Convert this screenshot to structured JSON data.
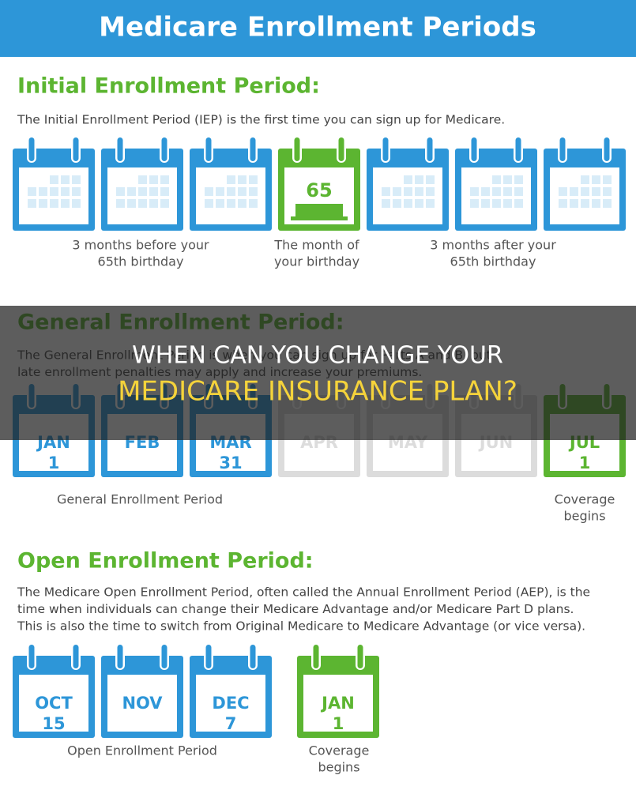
{
  "header": {
    "title": "Medicare Enrollment Periods"
  },
  "sections": [
    {
      "heading": "Initial Enrollment Period:",
      "description": [
        "The Initial Enrollment Period (IEP) is the first time you can sign up for Medicare."
      ],
      "calendars": [
        {
          "color": "#2d96d8"
        },
        {
          "color": "#2d96d8"
        },
        {
          "color": "#2d96d8"
        },
        {
          "color": "#5cb531",
          "label": "65"
        },
        {
          "color": "#2d96d8"
        },
        {
          "color": "#2d96d8"
        },
        {
          "color": "#2d96d8"
        }
      ],
      "captions": [
        [
          "3 months before your",
          "65th birthday"
        ],
        [
          "The month of",
          "your birthday"
        ],
        [
          "3 months after your",
          "65th birthday"
        ]
      ]
    },
    {
      "heading": "General Enrollment Period:",
      "description": [
        "The General Enrollment Period is when you can sign up for Parts A and B, but",
        "late enrollment penalties may apply and increase your premiums."
      ],
      "calendars": [
        {
          "color": "#2d96d8",
          "month": "JAN",
          "day": "1"
        },
        {
          "color": "#2d96d8",
          "month": "FEB"
        },
        {
          "color": "#2d96d8",
          "month": "MAR",
          "day": "31"
        },
        {
          "color": "#dcdcdc",
          "month": "APR"
        },
        {
          "color": "#dcdcdc",
          "month": "MAY"
        },
        {
          "color": "#dcdcdc",
          "month": "JUN"
        },
        {
          "color": "#5cb531",
          "month": "JUL",
          "day": "1"
        }
      ],
      "captions": [
        [
          "General Enrollment Period"
        ],
        [
          "Coverage",
          "begins"
        ]
      ]
    },
    {
      "heading": "Open Enrollment Period:",
      "description": [
        "The Medicare Open Enrollment Period, often called the Annual Enrollment Period (AEP), is the",
        "time when individuals can change their Medicare Advantage and/or Medicare Part D plans.",
        "This is also the time to switch from Original Medicare to Medicare Advantage (or vice versa)."
      ],
      "calendars": [
        {
          "color": "#2d96d8",
          "month": "OCT",
          "day": "15"
        },
        {
          "color": "#2d96d8",
          "month": "NOV"
        },
        {
          "color": "#2d96d8",
          "month": "DEC",
          "day": "7"
        },
        {
          "color": "#5cb531",
          "month": "JAN",
          "day": "1"
        }
      ],
      "captions": [
        [
          "Open Enrollment Period"
        ],
        [
          "Coverage",
          "begins"
        ]
      ]
    }
  ],
  "banner": {
    "line1": "WHEN CAN YOU CHANGE YOUR",
    "line2": "MEDICARE INSURANCE PLAN?"
  }
}
